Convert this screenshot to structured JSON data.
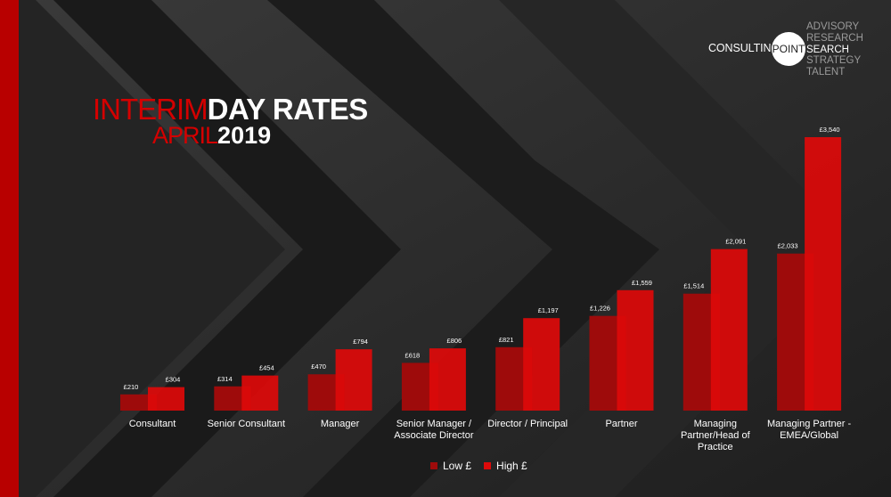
{
  "brand": {
    "name": "CONSULTING",
    "circle_word": "POINT",
    "services": [
      "ADVISORY",
      "RESEARCH",
      "SEARCH",
      "STRATEGY",
      "TALENT"
    ],
    "active_service": "SEARCH"
  },
  "title": {
    "line1_a": "INTERIM",
    "line1_b": "DAY RATES",
    "line2_a": "APRIL",
    "line2_b": "2019"
  },
  "colors": {
    "accent": "#d40000",
    "low": "#9e0b0b",
    "high": "#dd0a0a"
  },
  "chart_data": {
    "type": "bar",
    "title": "INTERIM DAY RATES APRIL 2019",
    "categories": [
      [
        "Consultant"
      ],
      [
        "Senior Consultant"
      ],
      [
        "Manager"
      ],
      [
        "Senior Manager /",
        "Associate Director"
      ],
      [
        "Director / Principal"
      ],
      [
        "Partner"
      ],
      [
        "Managing",
        "Partner/Head of",
        "Practice"
      ],
      [
        "Managing Partner -",
        "EMEA/Global"
      ]
    ],
    "series": [
      {
        "name": "Low £",
        "values": [
          210,
          314,
          470,
          618,
          821,
          1226,
          1514,
          2033
        ],
        "labels": [
          "£210",
          "£314",
          "£470",
          "£618",
          "£821",
          "£1,226",
          "£1,514",
          "£2,033"
        ]
      },
      {
        "name": "High £",
        "values": [
          304,
          454,
          794,
          806,
          1197,
          1559,
          2091,
          3540
        ],
        "labels": [
          "£304",
          "£454",
          "£794",
          "£806",
          "£1,197",
          "£1,559",
          "£2,091",
          "£3,540"
        ]
      }
    ],
    "ylim": [
      0,
      3540
    ],
    "grid": false,
    "legend_position": "bottom-center"
  }
}
